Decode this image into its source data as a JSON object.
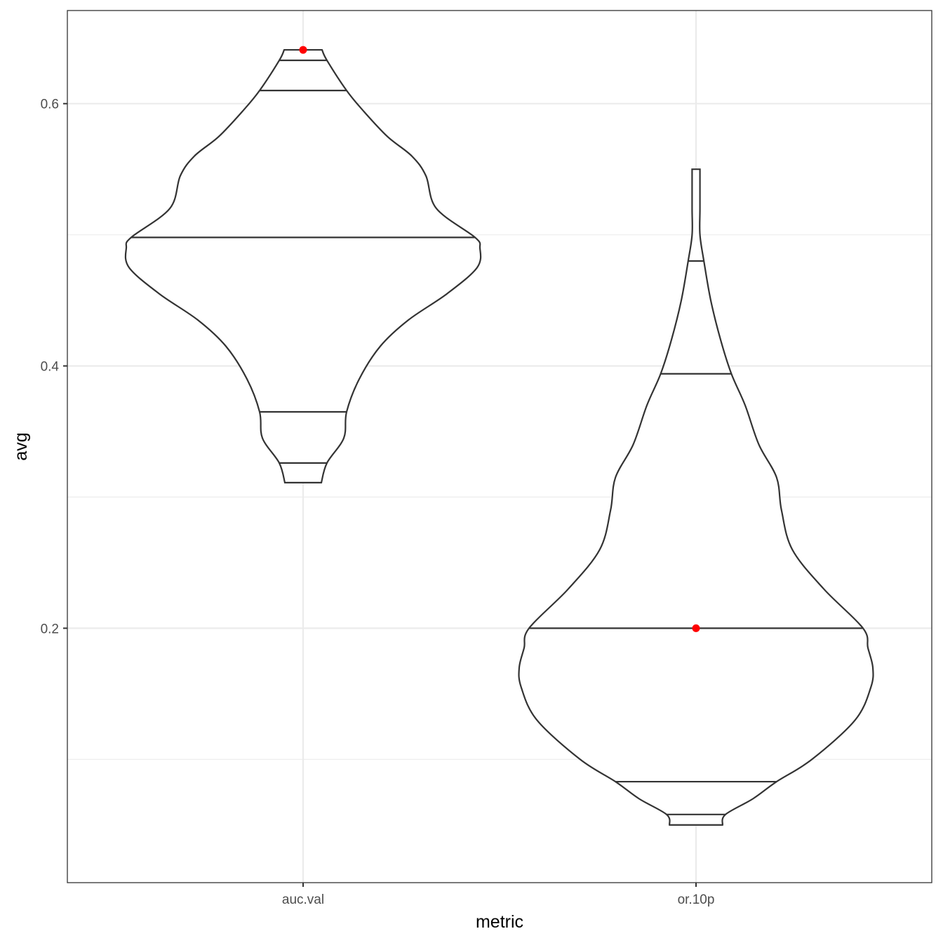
{
  "chart_data": {
    "type": "violin",
    "xlabel": "metric",
    "ylabel": "avg",
    "categories": [
      "auc.val",
      "or.10p"
    ],
    "ylim": [
      0.006,
      0.671
    ],
    "yticks": [
      0.2,
      0.4,
      0.6
    ],
    "ytick_labels": [
      "0.2",
      "0.4",
      "0.6"
    ],
    "grid": true,
    "colors": {
      "outline": "#333333",
      "point": "#ff0000",
      "grid": "#ebebeb",
      "panel_border": "#333333"
    },
    "series": [
      {
        "category": "auc.val",
        "ymin": 0.311,
        "ymax": 0.641,
        "highlight_point": 0.641,
        "quantile_lines": [
          0.326,
          0.365,
          0.498,
          0.61,
          0.633
        ],
        "density_profile": [
          [
            0.311,
            0.026
          ],
          [
            0.326,
            0.034
          ],
          [
            0.345,
            0.058
          ],
          [
            0.365,
            0.062
          ],
          [
            0.39,
            0.08
          ],
          [
            0.415,
            0.11
          ],
          [
            0.435,
            0.15
          ],
          [
            0.455,
            0.205
          ],
          [
            0.475,
            0.248
          ],
          [
            0.49,
            0.252
          ],
          [
            0.498,
            0.245
          ],
          [
            0.52,
            0.19
          ],
          [
            0.545,
            0.175
          ],
          [
            0.56,
            0.155
          ],
          [
            0.575,
            0.12
          ],
          [
            0.595,
            0.085
          ],
          [
            0.61,
            0.062
          ],
          [
            0.633,
            0.034
          ],
          [
            0.641,
            0.027
          ]
        ]
      },
      {
        "category": "or.10p",
        "ymin": 0.05,
        "ymax": 0.55,
        "highlight_point": 0.2,
        "quantile_lines": [
          0.058,
          0.083,
          0.2,
          0.394,
          0.48
        ],
        "density_profile": [
          [
            0.05,
            0.027
          ],
          [
            0.058,
            0.03
          ],
          [
            0.07,
            0.058
          ],
          [
            0.083,
            0.082
          ],
          [
            0.1,
            0.118
          ],
          [
            0.13,
            0.162
          ],
          [
            0.155,
            0.178
          ],
          [
            0.17,
            0.18
          ],
          [
            0.185,
            0.175
          ],
          [
            0.2,
            0.17
          ],
          [
            0.23,
            0.13
          ],
          [
            0.26,
            0.098
          ],
          [
            0.29,
            0.087
          ],
          [
            0.315,
            0.082
          ],
          [
            0.34,
            0.064
          ],
          [
            0.37,
            0.05
          ],
          [
            0.394,
            0.036
          ],
          [
            0.42,
            0.025
          ],
          [
            0.45,
            0.015
          ],
          [
            0.48,
            0.008
          ],
          [
            0.5,
            0.004
          ],
          [
            0.52,
            0.004
          ],
          [
            0.55,
            0.004
          ]
        ]
      }
    ]
  }
}
